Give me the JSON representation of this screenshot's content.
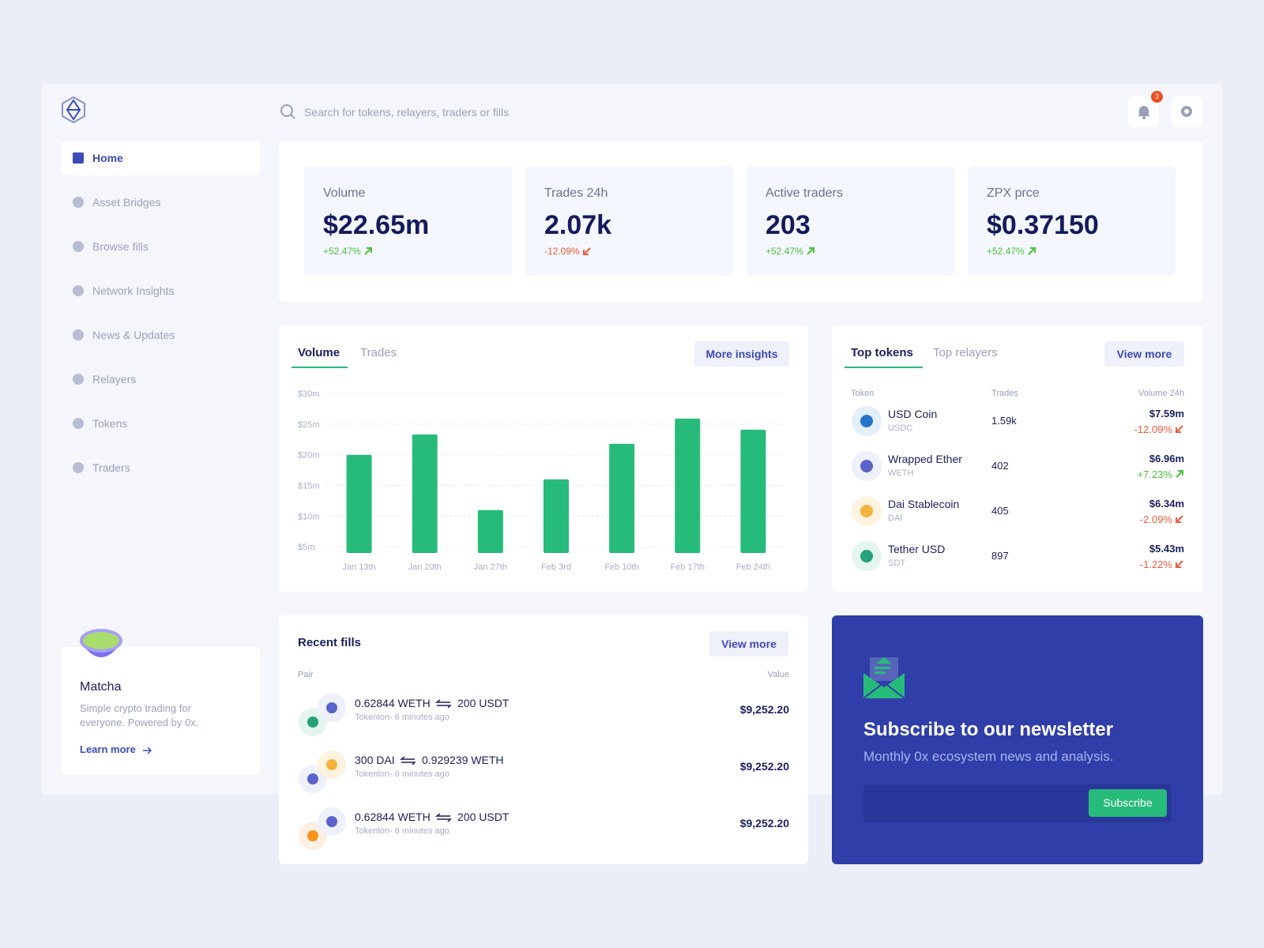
{
  "search_placeholder": "Search for tokens, relayers, traders or fills",
  "notification_count": "3",
  "nav": [
    "Home",
    "Asset Bridges",
    "Browse fills",
    "Network Insights",
    "News & Updates",
    "Relayers",
    "Tokens",
    "Traders"
  ],
  "promo": {
    "title": "Matcha",
    "text": "Simple crypto trading for everyone. Powered by 0x.",
    "link": "Learn more"
  },
  "stats": [
    {
      "label": "Volume",
      "value": "$22.65m",
      "change": "+52.47%"
    },
    {
      "label": "Trades 24h",
      "value": "2.07k",
      "change": "-12.09%"
    },
    {
      "label": "Active traders",
      "value": "203",
      "change": "+52.47%"
    },
    {
      "label": "ZPX prce",
      "value": "$0.37150",
      "change": "+52.47%"
    }
  ],
  "chart_tabs": [
    "Volume",
    "Trades"
  ],
  "chart_button": "More insights",
  "chart_data": {
    "type": "bar",
    "categories": [
      "Jan 13th",
      "Jan 20th",
      "Jan 27th",
      "Feb 3rd",
      "Feb 10th",
      "Feb 17th",
      "Feb 24th"
    ],
    "values": [
      20,
      23.3,
      11,
      16,
      21.8,
      25.9,
      24.1
    ],
    "color": "#26bb7a",
    "ylim": [
      4,
      30
    ],
    "yticks": [
      {
        "value": 5,
        "label": "$5m"
      },
      {
        "value": 10,
        "label": "$10m"
      },
      {
        "value": 15,
        "label": "$15m"
      },
      {
        "value": 20,
        "label": "$20m"
      },
      {
        "value": 25,
        "label": "$25m"
      },
      {
        "value": 30,
        "label": "$30m"
      }
    ],
    "grid": true
  },
  "top_tokens": {
    "tabs": [
      "Top tokens",
      "Top relayers"
    ],
    "button": "View more",
    "columns": [
      "Token",
      "Trades",
      "Volume 24h"
    ],
    "rows": [
      {
        "name": "USD Coin",
        "symbol": "USDC",
        "trades": "1.59k",
        "volume": "$7.59m",
        "change": "-12.09%"
      },
      {
        "name": "Wrapped Ether",
        "symbol": "WETH",
        "trades": "402",
        "volume": "$6.96m",
        "change": "+7.23%"
      },
      {
        "name": "Dai Stablecoin",
        "symbol": "DAI",
        "trades": "405",
        "volume": "$6.34m",
        "change": "-2.09%"
      },
      {
        "name": "Tether USD",
        "symbol": "SDT",
        "trades": "897",
        "volume": "$5.43m",
        "change": "-1.22%"
      }
    ]
  },
  "recent_fills": {
    "title": "Recent fills",
    "button": "View more",
    "columns": [
      "Pair",
      "Value"
    ],
    "rows": [
      {
        "from": "0.62844 WETH",
        "to": "200 USDT",
        "meta": "Tokenlon- 6 minutes ago",
        "value": "$9,252.20"
      },
      {
        "from": "300 DAI",
        "to": "0.929239 WETH",
        "meta": "Tokenlon- 6 minutes ago",
        "value": "$9,252.20"
      },
      {
        "from": "0.62844 WETH",
        "to": "200 USDT",
        "meta": "Tokenlon- 6 minutes ago",
        "value": "$9,252.20"
      }
    ]
  },
  "newsletter": {
    "title": "Subscribe to our newsletter",
    "text": "Monthly 0x ecosystem news and analysis.",
    "button": "Subscribe"
  }
}
